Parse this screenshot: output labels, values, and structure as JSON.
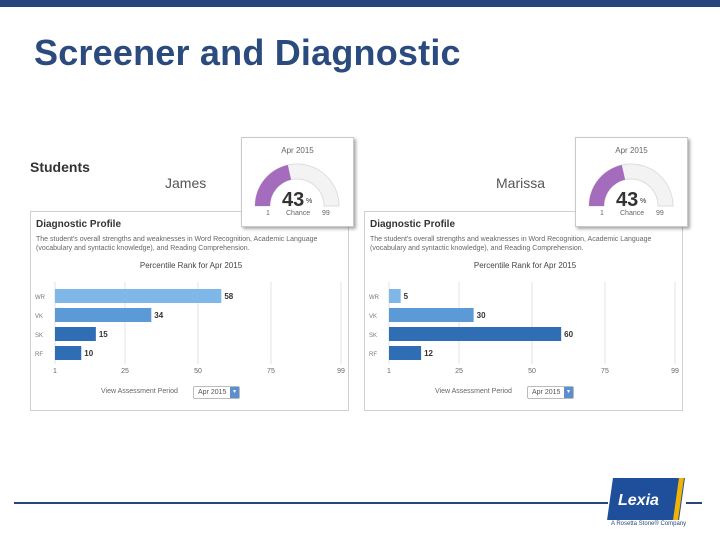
{
  "slide": {
    "title": "Screener and Diagnostic"
  },
  "students_heading": "Students",
  "colors": {
    "accent": "#27457a",
    "gauge_fill": "#a56bbd",
    "bar_light": "#7fb8e8",
    "bar_mid": "#5b9ad6",
    "bar_dark": "#2f6db5"
  },
  "panels": [
    {
      "student_name": "James",
      "gauge": {
        "date": "Apr 2015",
        "percent": "43",
        "percent_sign": "%",
        "min": "1",
        "max": "99",
        "label": "Chance"
      },
      "profile": {
        "title": "Diagnostic Profile",
        "description": "The student's overall strengths and weaknesses in Word Recognition, Academic Language (vocabulary and syntactic knowledge), and Reading Comprehension.",
        "period_label": "View Assessment Period",
        "period_value": "Apr 2015"
      }
    },
    {
      "student_name": "Marissa",
      "gauge": {
        "date": "Apr 2015",
        "percent": "43",
        "percent_sign": "%",
        "min": "1",
        "max": "99",
        "label": "Chance"
      },
      "profile": {
        "title": "Diagnostic Profile",
        "description": "The student's overall strengths and weaknesses in Word Recognition, Academic Language (vocabulary and syntactic knowledge), and Reading Comprehension.",
        "period_label": "View Assessment Period",
        "period_value": "Apr 2015"
      }
    }
  ],
  "chart_data": [
    {
      "type": "bar",
      "orientation": "horizontal",
      "title": "Percentile Rank for Apr 2015",
      "categories": [
        "WR",
        "VK",
        "SK",
        "RF"
      ],
      "values": [
        58,
        34,
        15,
        10
      ],
      "x_ticks": [
        "1",
        "25",
        "50",
        "75",
        "99"
      ],
      "xlim": [
        1,
        99
      ]
    },
    {
      "type": "bar",
      "orientation": "horizontal",
      "title": "Percentile Rank for Apr 2015",
      "categories": [
        "WR",
        "VK",
        "SK",
        "RF"
      ],
      "values": [
        5,
        30,
        60,
        12
      ],
      "x_ticks": [
        "1",
        "25",
        "50",
        "75",
        "99"
      ],
      "xlim": [
        1,
        99
      ]
    }
  ],
  "logo": {
    "name": "Lexia",
    "tagline": "A Rosetta Stone® Company"
  }
}
